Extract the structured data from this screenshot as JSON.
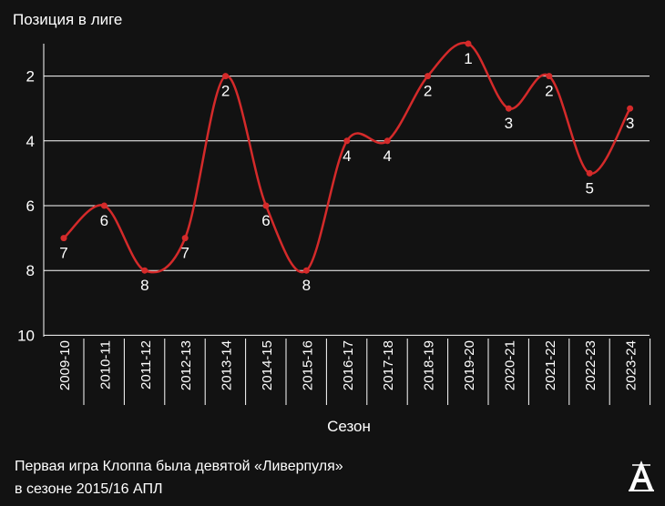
{
  "chart_data": {
    "type": "line",
    "ylabel": "Позиция в лиге",
    "xlabel": "Сезон",
    "categories": [
      "2009-10",
      "2010-11",
      "2011-12",
      "2012-13",
      "2013-14",
      "2014-15",
      "2015-16",
      "2016-17",
      "2017-18",
      "2018-19",
      "2019-20",
      "2020-21",
      "2021-22",
      "2022-23",
      "2023-24"
    ],
    "series": [
      {
        "values": [
          7,
          6,
          8,
          7,
          2,
          6,
          8,
          4,
          4,
          2,
          1,
          3,
          2,
          5,
          3
        ]
      }
    ],
    "ylim": [
      10,
      1
    ],
    "y_inverted": true,
    "yticks": [
      2,
      4,
      6,
      8,
      10
    ],
    "grid": "horizontal",
    "line_color": "#d42a2a",
    "smooth": true,
    "data_labels": true
  },
  "footnote": {
    "line1": "Первая игра Клоппа была девятой «Ливерпуля»",
    "line2": "в сезоне 2015/16 АПЛ"
  },
  "logo": {
    "icon": "athletic-logo-icon",
    "letter": "A"
  },
  "colors": {
    "background": "#121212",
    "grid": "#ffffff",
    "text": "#ffffff",
    "line": "#d42a2a"
  }
}
